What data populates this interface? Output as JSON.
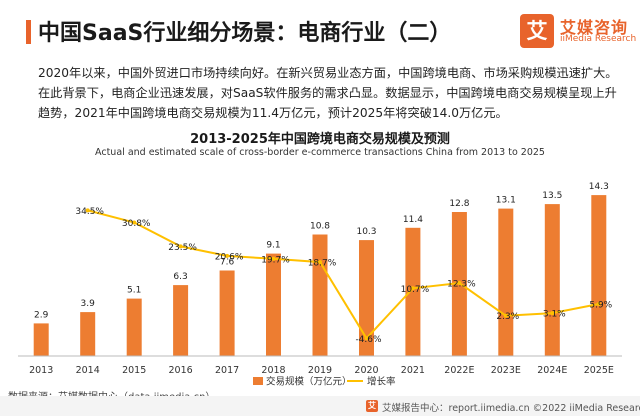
{
  "header": {
    "title": "中国SaaS行业细分场景：电商行业（二）"
  },
  "logo": {
    "mark": "艾",
    "name": "艾媒咨询",
    "sub": "iiMedia Research"
  },
  "intro": "2020年以来，中国外贸进口市场持续向好。在新兴贸易业态方面，中国跨境电商、市场采购规模迅速扩大。在此背景下，电商企业迅速发展，对SaaS软件服务的需求凸显。数据显示，中国跨境电商交易规模呈现上升趋势，2021年中国跨境电商交易规模为11.4万亿元，预计2025年将突破14.0万亿元。",
  "chart_data": {
    "type": "bar",
    "title": "2013-2025年中国跨境电商交易规模及预测",
    "subtitle": "Actual and estimated scale of cross-border e-commerce transactions China from 2013 to 2025",
    "categories": [
      "2013",
      "2014",
      "2015",
      "2016",
      "2017",
      "2018",
      "2019",
      "2020",
      "2021",
      "2022E",
      "2023E",
      "2024E",
      "2025E"
    ],
    "series": [
      {
        "name": "交易规模（万亿元）",
        "kind": "bar",
        "axis": "left",
        "values": [
          2.9,
          3.9,
          5.1,
          6.3,
          7.6,
          9.1,
          10.8,
          10.3,
          11.4,
          12.8,
          13.1,
          13.5,
          14.3
        ],
        "labels": [
          "2.9",
          "3.9",
          "5.1",
          "6.3",
          "7.6",
          "9.1",
          "10.8",
          "10.3",
          "11.4",
          "12.8",
          "13.1",
          "13.5",
          "14.3"
        ]
      },
      {
        "name": "增长率",
        "kind": "line",
        "axis": "right",
        "values": [
          null,
          34.5,
          30.8,
          23.5,
          20.6,
          19.7,
          18.7,
          -4.6,
          10.7,
          12.3,
          2.3,
          3.1,
          5.9
        ],
        "labels": [
          "",
          "34.5%",
          "30.8%",
          "23.5%",
          "20.6%",
          "19.7%",
          "18.7%",
          "-4.6%",
          "10.7%",
          "12.3%",
          "2.3%",
          "3.1%",
          "5.9%"
        ]
      }
    ],
    "ylim": [
      0,
      16
    ],
    "y2lim": [
      -10,
      45
    ],
    "grid": false,
    "legend": "bottom-center",
    "colors": {
      "bar": "#ed7d31",
      "line": "#ffc000"
    }
  },
  "source": "数据来源：艾媒数据中心（data.iimedia.cn）",
  "footer": "艾媒报告中心：report.iimedia.cn  ©2022 iiMedia Research Inc"
}
